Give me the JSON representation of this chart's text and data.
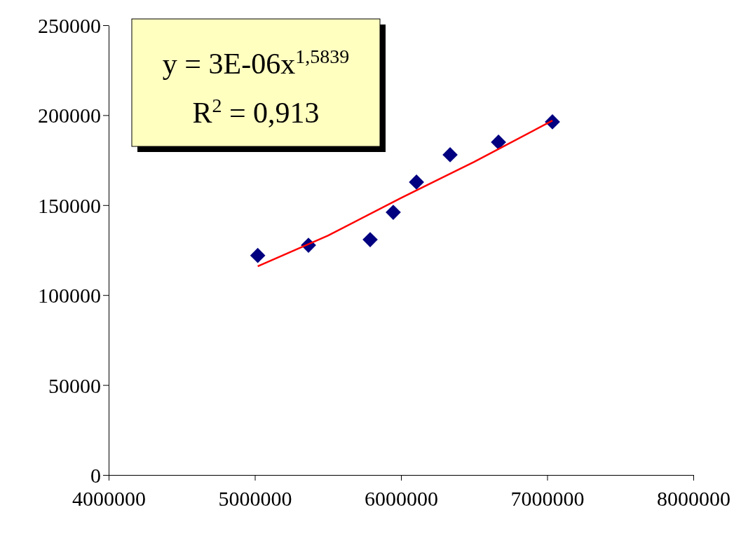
{
  "chart_data": {
    "type": "scatter",
    "xlim": [
      4000000,
      8000000
    ],
    "xticks": [
      4000000,
      5000000,
      6000000,
      7000000,
      8000000
    ],
    "ylim": [
      0,
      250000
    ],
    "yticks": [
      0,
      50000,
      100000,
      150000,
      200000,
      250000
    ],
    "grid": false,
    "legend": false,
    "marker": "diamond",
    "annotations": [
      "y = 3E-06x$^{1,5839}$",
      "R$^{2}$ = 0,913"
    ],
    "series": [
      {
        "color": "#000080",
        "x": [
          5020000,
          5367000,
          5789000,
          5947000,
          6106000,
          6336000,
          6667000,
          7036000
        ],
        "values": [
          122000,
          127700,
          130800,
          146000,
          162800,
          178000,
          185000,
          196300
        ]
      },
      {
        "type": "line",
        "color": "#ff0000",
        "marker": "none",
        "line_style": "solid",
        "x": [
          5020000,
          5500000,
          6000000,
          6500000,
          7036000
        ],
        "values": [
          116000,
          133000,
          154000,
          174000,
          197000
        ]
      }
    ]
  }
}
